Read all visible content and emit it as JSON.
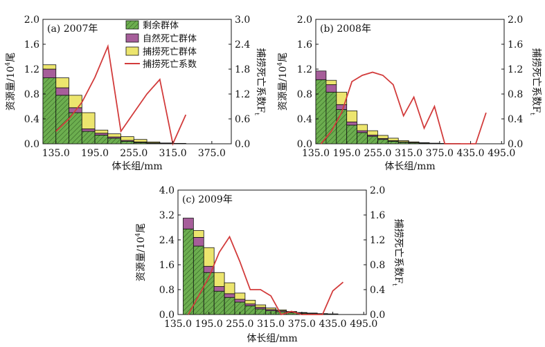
{
  "colors": {
    "remaining": "#6cae4f",
    "natural_death": "#a65e9a",
    "fishing_death": "#ece56e",
    "fishing_coef": "#d23b3b",
    "hatch": "#2f5a20"
  },
  "legend": {
    "placement": "top-center of panel (a)",
    "items": [
      {
        "key": "remaining",
        "label": "剩余群体",
        "kind": "box"
      },
      {
        "key": "natural",
        "label": "自然死亡群体",
        "kind": "box"
      },
      {
        "key": "fishing",
        "label": "捕捞死亡群体",
        "kind": "box"
      },
      {
        "key": "coef",
        "label": "捕捞死亡系数",
        "kind": "line"
      }
    ]
  },
  "chart_data": [
    {
      "id": "a",
      "type": "bar",
      "stacked": true,
      "secondary_line": true,
      "title": "(a) 2007年",
      "xlabel": "体长组/mm",
      "ylabel": "资源量/10",
      "ylabel_sup": "4",
      "ylabel_tail": "尾",
      "y2label": "捕捞死亡系数F",
      "y2label_sub": "t",
      "ylim": [
        0,
        2.0
      ],
      "y2lim": [
        0,
        3.0
      ],
      "yticks": [
        "0.0",
        "0.4",
        "0.8",
        "1.2",
        "1.6",
        "2.0"
      ],
      "y2ticks": [
        "0.0",
        "0.6",
        "1.2",
        "1.8",
        "2.4",
        "3.0"
      ],
      "xticks": [
        "135.0",
        "195.0",
        "255.0",
        "315.0",
        "375.0"
      ],
      "categories": [
        125,
        145,
        165,
        185,
        205,
        225,
        245,
        265,
        285,
        305,
        325
      ],
      "series": [
        {
          "key": "remaining",
          "values": [
            1.06,
            0.78,
            0.5,
            0.2,
            0.14,
            0.09,
            0.04,
            0.02,
            0.01,
            0.005,
            0.003
          ]
        },
        {
          "key": "natural",
          "values": [
            0.14,
            0.12,
            0.08,
            0.04,
            0.03,
            0.02,
            0.015,
            0.01,
            0.005,
            0.003,
            0.002
          ]
        },
        {
          "key": "fishing",
          "values": [
            0.07,
            0.16,
            0.2,
            0.26,
            0.05,
            0.05,
            0.06,
            0.04,
            0.015,
            0.005,
            0.002
          ]
        }
      ],
      "line": {
        "key": "coef",
        "x": [
          135,
          155,
          175,
          195,
          215,
          235,
          255,
          275,
          295,
          315,
          335
        ],
        "values": [
          0.3,
          0.6,
          1.0,
          1.6,
          2.35,
          0.3,
          0.75,
          1.2,
          1.55,
          0.0,
          0.7
        ]
      },
      "grid": false
    },
    {
      "id": "b",
      "type": "bar",
      "stacked": true,
      "secondary_line": true,
      "title": "(b) 2008年",
      "xlabel": "体长组/mm",
      "ylabel": "资源量/10",
      "ylabel_sup": "4",
      "ylabel_tail": "尾",
      "y2label": "捕捞死亡系数F",
      "y2label_sub": "t",
      "ylim": [
        0,
        2.0
      ],
      "y2lim": [
        0,
        2.0
      ],
      "yticks": [
        "0.0",
        "0.4",
        "0.8",
        "1.2",
        "1.6",
        "2.0"
      ],
      "y2ticks": [
        "0.0",
        "0.4",
        "0.8",
        "1.2",
        "1.6",
        "2.0"
      ],
      "xticks": [
        "135.0",
        "195.0",
        "255.0",
        "315.0",
        "375.0",
        "435.0",
        "495.0"
      ],
      "categories": [
        145,
        165,
        185,
        205,
        225,
        245,
        265,
        285,
        305,
        325,
        345,
        365,
        385,
        405
      ],
      "series": [
        {
          "key": "remaining",
          "values": [
            1.03,
            0.83,
            0.55,
            0.3,
            0.18,
            0.12,
            0.07,
            0.04,
            0.025,
            0.015,
            0.01,
            0.005,
            0.003,
            0.002
          ]
        },
        {
          "key": "natural",
          "values": [
            0.14,
            0.12,
            0.08,
            0.05,
            0.03,
            0.02,
            0.015,
            0.01,
            0.006,
            0.004,
            0.002,
            0.002,
            0.001,
            0.001
          ]
        },
        {
          "key": "fishing",
          "values": [
            0.0,
            0.07,
            0.2,
            0.18,
            0.1,
            0.07,
            0.05,
            0.04,
            0.02,
            0.012,
            0.006,
            0.003,
            0.002,
            0.001
          ]
        }
      ],
      "line": {
        "key": "coef",
        "x": [
          145,
          165,
          185,
          205,
          225,
          245,
          265,
          285,
          305,
          325,
          345,
          365,
          385,
          405,
          425,
          445,
          465
        ],
        "values": [
          0.0,
          0.2,
          0.5,
          1.0,
          1.1,
          1.15,
          1.1,
          0.95,
          0.45,
          0.75,
          0.25,
          0.6,
          0.0,
          0.0,
          0.0,
          0.0,
          0.5
        ]
      },
      "grid": false
    },
    {
      "id": "c",
      "type": "bar",
      "stacked": true,
      "secondary_line": true,
      "title": "(c) 2009年",
      "xlabel": "体长组/mm",
      "ylabel": "资源量/10",
      "ylabel_sup": "4",
      "ylabel_tail": "尾",
      "y2label": "捕捞死亡系数F",
      "y2label_sub": "t",
      "ylim": [
        0,
        4.0
      ],
      "y2lim": [
        0,
        2.0
      ],
      "yticks": [
        "0.0",
        "0.8",
        "1.6",
        "2.4",
        "3.2",
        "4.0"
      ],
      "y2ticks": [
        "0.0",
        "0.4",
        "0.8",
        "1.2",
        "1.6",
        "2.0"
      ],
      "xticks": [
        "135.0",
        "195.0",
        "255.0",
        "315.0",
        "375.0",
        "435.0",
        "495.0"
      ],
      "categories": [
        155,
        175,
        195,
        215,
        235,
        255,
        275,
        295,
        315,
        335,
        355,
        375,
        395,
        415,
        435
      ],
      "series": [
        {
          "key": "remaining",
          "values": [
            2.75,
            2.2,
            1.35,
            0.75,
            0.55,
            0.4,
            0.28,
            0.18,
            0.12,
            0.09,
            0.06,
            0.04,
            0.03,
            0.02,
            0.01
          ]
        },
        {
          "key": "natural",
          "values": [
            0.35,
            0.28,
            0.2,
            0.15,
            0.12,
            0.09,
            0.06,
            0.05,
            0.04,
            0.03,
            0.02,
            0.01,
            0.008,
            0.005,
            0.005
          ]
        },
        {
          "key": "fishing",
          "values": [
            0.0,
            0.22,
            0.6,
            0.45,
            0.35,
            0.2,
            0.12,
            0.08,
            0.05,
            0.03,
            0.02,
            0.015,
            0.01,
            0.005,
            0.005
          ]
        }
      ],
      "line": {
        "key": "coef",
        "x": [
          155,
          175,
          195,
          215,
          235,
          255,
          275,
          295,
          315,
          335,
          355,
          375,
          395,
          415,
          435,
          455
        ],
        "values": [
          0.0,
          0.3,
          0.6,
          1.0,
          1.25,
          0.85,
          0.4,
          0.4,
          0.3,
          0.0,
          0.05,
          0.0,
          0.0,
          0.0,
          0.38,
          0.52
        ]
      },
      "grid": false
    }
  ]
}
